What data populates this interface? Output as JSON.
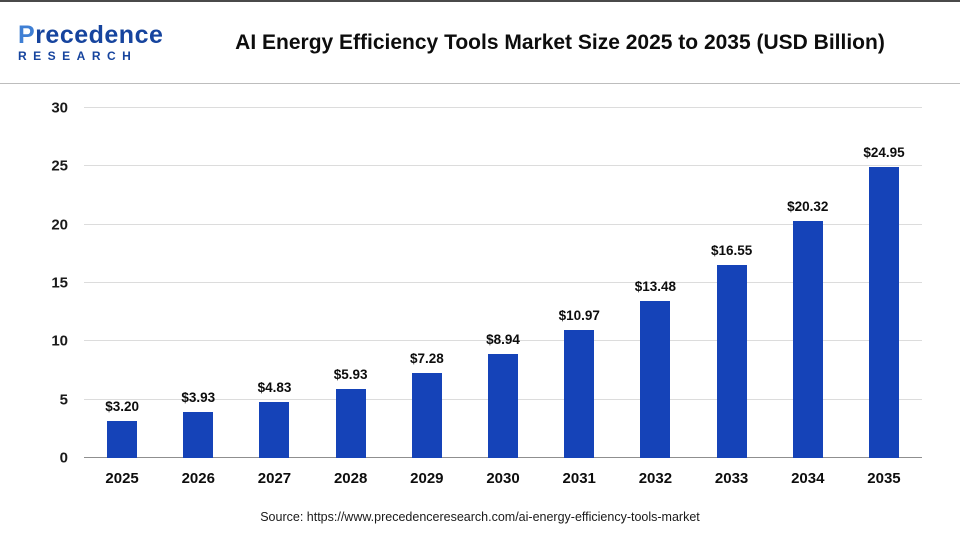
{
  "header": {
    "title": "AI Energy Efficiency Tools Market Size 2025 to 2035 (USD Billion)",
    "logo": {
      "p": "P",
      "rest": "recedence",
      "line2": "RESEARCH"
    }
  },
  "chart_data": {
    "type": "bar",
    "title": "AI Energy Efficiency Tools Market Size 2025 to 2035 (USD Billion)",
    "categories": [
      "2025",
      "2026",
      "2027",
      "2028",
      "2029",
      "2030",
      "2031",
      "2032",
      "2033",
      "2034",
      "2035"
    ],
    "values": [
      3.2,
      3.93,
      4.83,
      5.93,
      7.28,
      8.94,
      10.97,
      13.48,
      16.55,
      20.32,
      24.95
    ],
    "value_labels": [
      "$3.20",
      "$3.93",
      "$4.83",
      "$5.93",
      "$7.28",
      "$8.94",
      "$10.97",
      "$13.48",
      "$16.55",
      "$20.32",
      "$24.95"
    ],
    "xlabel": "",
    "ylabel": "",
    "ylim": [
      0,
      30
    ],
    "yticks": [
      0,
      5,
      10,
      15,
      20,
      25,
      30
    ],
    "ytick_labels": [
      "0",
      "5",
      "10",
      "15",
      "20",
      "25",
      "30"
    ],
    "grid": true,
    "legend_position": "none",
    "bar_color": "#1543b8"
  },
  "colors": {
    "bar": "#1543b8",
    "logo_navy": "#16449e",
    "logo_light": "#3f7fd4",
    "gridline": "#dcdcdc"
  },
  "footer": {
    "source": "Source: https://www.precedenceresearch.com/ai-energy-efficiency-tools-market"
  }
}
